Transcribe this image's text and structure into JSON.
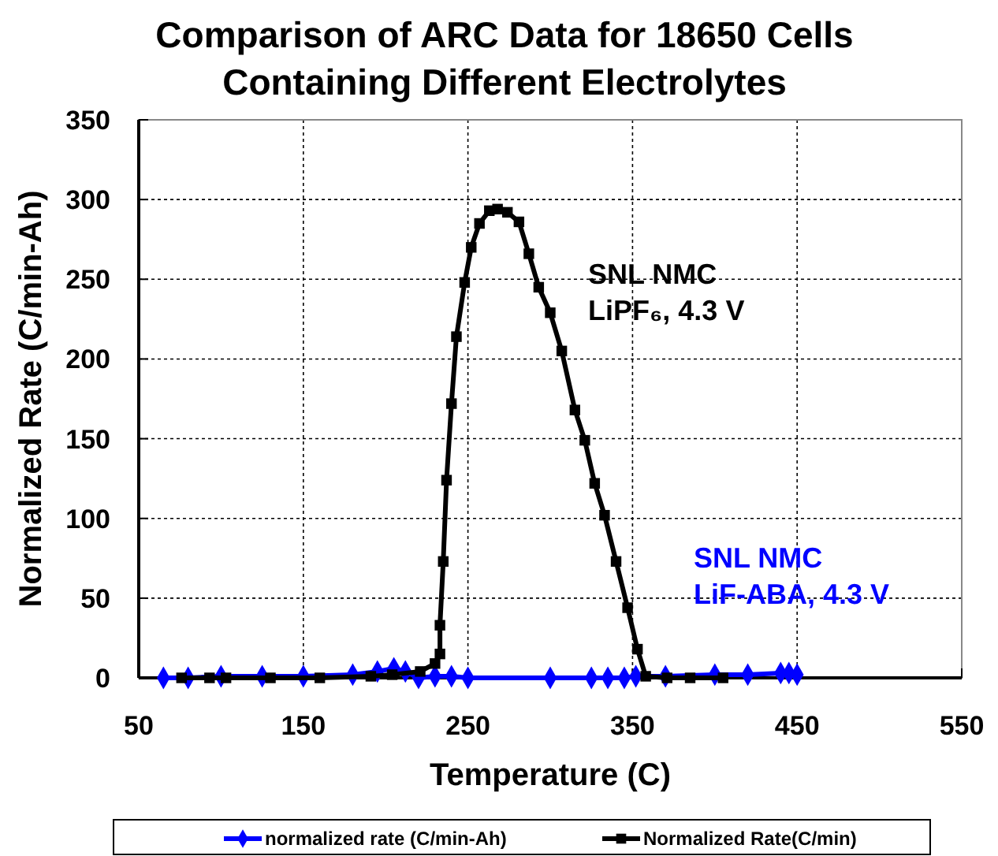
{
  "chart_data": {
    "type": "line",
    "title": "Comparison of ARC Data for 18650 Cells\nContaining Different Electrolytes",
    "xlabel": "Temperature (C)",
    "ylabel": "Normalized Rate (C/min-Ah)",
    "xlim": [
      50,
      550
    ],
    "xticks": [
      50,
      150,
      250,
      350,
      450,
      550
    ],
    "ylim": [
      0,
      350
    ],
    "yticks": [
      0,
      50,
      100,
      150,
      200,
      250,
      300,
      350
    ],
    "grid": true,
    "legend": "bottom",
    "annotations": [
      "SNL NMC\nLiF-ABA, 4.3 V",
      "SNL NMC\nLiPF₆, 4.3 V"
    ],
    "series": [
      {
        "name": "normalized rate (C/min-Ah)",
        "color": "#0000ff",
        "marker": "diamond",
        "x": [
          65,
          80,
          100,
          125,
          150,
          180,
          195,
          205,
          212,
          220,
          230,
          240,
          250,
          300,
          325,
          335,
          345,
          352,
          370,
          400,
          420,
          440,
          445,
          450
        ],
        "values": [
          0,
          0,
          1,
          1,
          1,
          2,
          4,
          6,
          4,
          0,
          1,
          1,
          0,
          0,
          0,
          0,
          0,
          1,
          1,
          2,
          2,
          3,
          3,
          2
        ]
      },
      {
        "name": "Normalized Rate(C/min)",
        "color": "#000000",
        "marker": "square",
        "x": [
          76,
          93,
          103,
          130,
          160,
          191,
          204,
          221,
          230,
          233,
          233,
          235,
          237,
          240,
          243,
          248,
          252,
          257,
          263,
          268,
          274,
          281,
          287,
          293,
          300,
          307,
          315,
          321,
          327,
          333,
          340,
          347,
          353,
          358,
          371,
          385,
          405
        ],
        "values": [
          0,
          0,
          0,
          0,
          0,
          1,
          2,
          4,
          9,
          15,
          33,
          73,
          124,
          172,
          214,
          248,
          270,
          285,
          293,
          294,
          292,
          286,
          266,
          245,
          229,
          205,
          168,
          149,
          122,
          102,
          73,
          44,
          18,
          1,
          0,
          0,
          0
        ]
      }
    ]
  }
}
